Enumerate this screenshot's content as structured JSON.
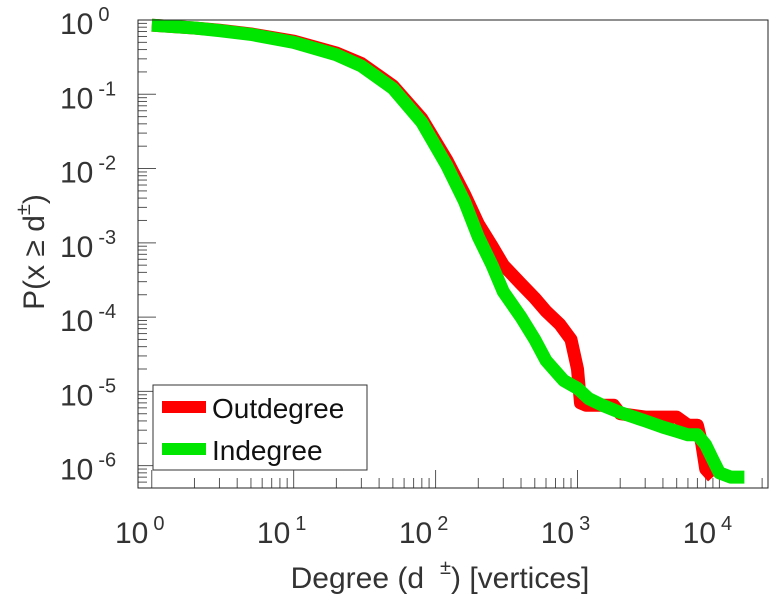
{
  "chart_data": {
    "type": "line",
    "x_scale": "log",
    "y_scale": "log",
    "xlabel": "Degree (d ±) [vertices]",
    "xlabel_parts": {
      "pre": "Degree (d",
      "sup": "±",
      "post": ") [vertices]"
    },
    "ylabel": "P(x ≥ d±)",
    "ylabel_parts": {
      "pre": "P(x ≥ d",
      "sup": "±",
      "post": ")"
    },
    "xlim": [
      0.8,
      22000
    ],
    "ylim": [
      5e-07,
      1.0
    ],
    "x_ticks": [
      {
        "base": "10",
        "exp": "0",
        "value": 1
      },
      {
        "base": "10",
        "exp": "1",
        "value": 10
      },
      {
        "base": "10",
        "exp": "2",
        "value": 100
      },
      {
        "base": "10",
        "exp": "3",
        "value": 1000
      },
      {
        "base": "10",
        "exp": "4",
        "value": 10000
      }
    ],
    "y_ticks": [
      {
        "base": "10",
        "exp": "0",
        "value": 1
      },
      {
        "base": "10",
        "exp": "-1",
        "value": 0.1
      },
      {
        "base": "10",
        "exp": "-2",
        "value": 0.01
      },
      {
        "base": "10",
        "exp": "-3",
        "value": 0.001
      },
      {
        "base": "10",
        "exp": "-4",
        "value": 0.0001
      },
      {
        "base": "10",
        "exp": "-5",
        "value": 1e-05
      },
      {
        "base": "10",
        "exp": "-6",
        "value": 1e-06
      }
    ],
    "grid": false,
    "legend_position": "bottom-left",
    "series": [
      {
        "name": "Outdegree",
        "color": "#ff0000",
        "x": [
          1,
          2,
          3,
          5,
          10,
          20,
          30,
          50,
          80,
          120,
          160,
          200,
          250,
          300,
          400,
          500,
          600,
          750,
          900,
          1000,
          1050,
          1150,
          1400,
          1800,
          2000,
          3000,
          4000,
          5000,
          6000,
          7000,
          7500,
          8000,
          9000
        ],
        "y": [
          0.85,
          0.78,
          0.73,
          0.65,
          0.52,
          0.36,
          0.26,
          0.13,
          0.047,
          0.013,
          0.0045,
          0.0018,
          0.0009,
          0.0005,
          0.00028,
          0.00018,
          0.00012,
          8e-05,
          5e-05,
          2e-05,
          7e-06,
          6.5e-06,
          6.5e-06,
          6.5e-06,
          5e-06,
          4.5e-06,
          4.5e-06,
          4.5e-06,
          3.5e-06,
          3.5e-06,
          2e-06,
          9e-07,
          7e-07
        ]
      },
      {
        "name": "Indegree",
        "color": "#00e600",
        "x": [
          1,
          2,
          3,
          5,
          10,
          20,
          30,
          50,
          80,
          120,
          160,
          200,
          250,
          300,
          400,
          500,
          600,
          800,
          1000,
          1200,
          1500,
          2000,
          3000,
          4000,
          5000,
          6000,
          7000,
          8000,
          9000,
          10000,
          12000,
          15000
        ],
        "y": [
          0.85,
          0.78,
          0.72,
          0.64,
          0.5,
          0.34,
          0.24,
          0.12,
          0.042,
          0.011,
          0.0036,
          0.0012,
          0.0005,
          0.00022,
          0.0001,
          5e-05,
          2.6e-05,
          1.4e-05,
          1.1e-05,
          8e-06,
          6.5e-06,
          5.2e-06,
          4e-06,
          3.3e-06,
          2.9e-06,
          2.6e-06,
          2.6e-06,
          1.9e-06,
          1.2e-06,
          8e-07,
          7e-07,
          7e-07
        ]
      }
    ]
  }
}
